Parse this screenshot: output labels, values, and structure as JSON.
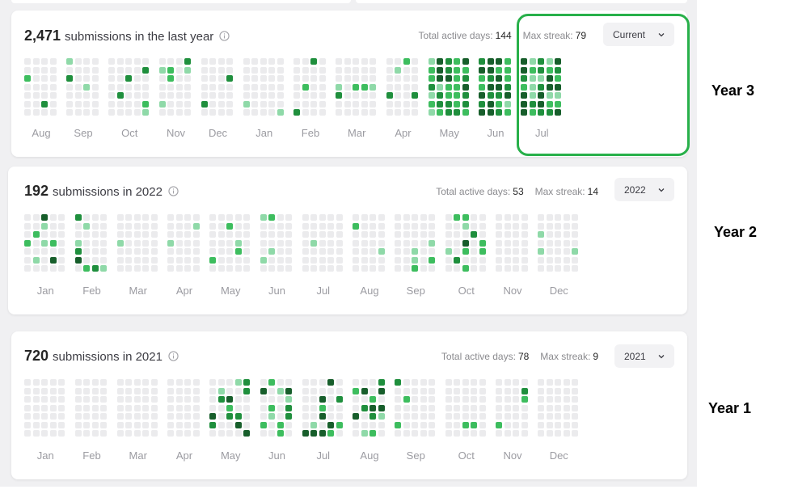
{
  "cards": [
    {
      "id": "recent",
      "count": "2,471",
      "description": "submissions in the last year",
      "active_days_label": "Total active days:",
      "active_days": "144",
      "max_streak_label": "Max streak:",
      "max_streak": "79",
      "selector": "Current",
      "months": [
        "Aug",
        "Sep",
        "Oct",
        "Nov",
        "Dec",
        "Jan",
        "Feb",
        "Mar",
        "Apr",
        "May",
        "Jun",
        "Jul"
      ]
    },
    {
      "id": "y2022",
      "count": "192",
      "description": "submissions in 2022",
      "active_days_label": "Total active days:",
      "active_days": "53",
      "max_streak_label": "Max streak:",
      "max_streak": "14",
      "selector": "2022",
      "months": [
        "Jan",
        "Feb",
        "Mar",
        "Apr",
        "May",
        "Jun",
        "Jul",
        "Aug",
        "Sep",
        "Oct",
        "Nov",
        "Dec"
      ]
    },
    {
      "id": "y2021",
      "count": "720",
      "description": "submissions in 2021",
      "active_days_label": "Total active days:",
      "active_days": "78",
      "max_streak_label": "Max streak:",
      "max_streak": "9",
      "selector": "2021",
      "months": [
        "Jan",
        "Feb",
        "Mar",
        "Apr",
        "May",
        "Jun",
        "Jul",
        "Aug",
        "Sep",
        "Oct",
        "Nov",
        "Dec"
      ]
    }
  ],
  "annotations": {
    "year3": "Year 3",
    "year2": "Year 2",
    "year1": "Year 1"
  },
  "colors": {
    "empty": "#ebebed",
    "level1": "#8fd9a8",
    "level2": "#3dbd5e",
    "level3": "#1f8f3d",
    "level4": "#175e2b",
    "highlight": "#28b04a"
  },
  "icons": {
    "info": "info-circle-icon",
    "dropdown": "chevron-down-icon"
  }
}
